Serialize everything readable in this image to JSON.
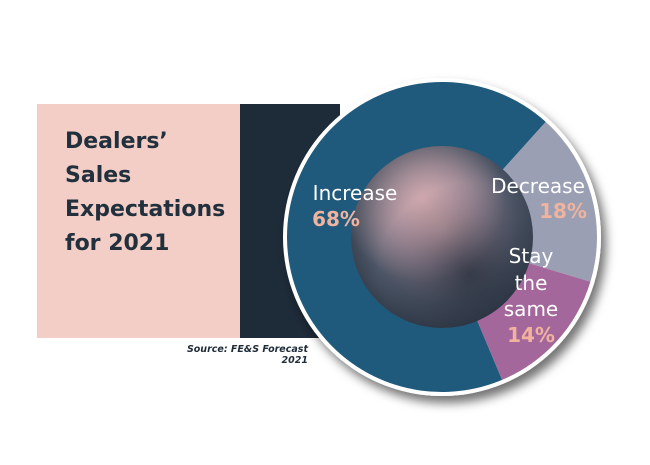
{
  "title": "Dealers’\nSales\nExpectations\nfor 2021",
  "source": "Source: FE&S Forecast 2021",
  "colors": {
    "title_panel": "#f2cec6",
    "dark_panel": "#1e2b38",
    "value_text": "#f0b39e"
  },
  "chart_data": {
    "type": "pie",
    "style": "donut",
    "slices": [
      {
        "label": "Increase",
        "value": 68,
        "display": "68%",
        "color": "#1f5a7c"
      },
      {
        "label": "Decrease",
        "value": 18,
        "display": "18%",
        "color": "#9a9fb4"
      },
      {
        "label": "Stay the same",
        "value": 14,
        "display": "14%",
        "color": "#a4679b"
      }
    ]
  }
}
